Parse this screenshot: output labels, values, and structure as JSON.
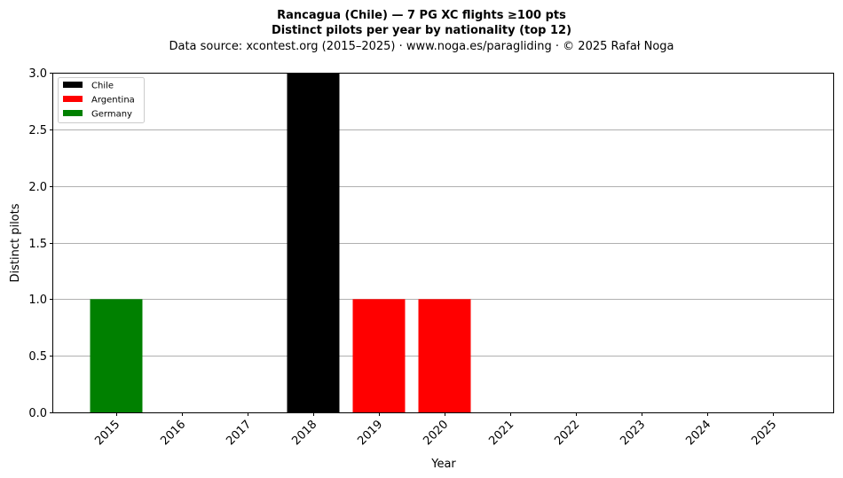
{
  "chart_data": {
    "type": "bar",
    "stacked": true,
    "title_line1": "Rancagua (Chile)  —  7 PG XC flights ≥100 pts",
    "title_line2": "Distinct pilots per year by nationality (top 12)",
    "subtitle": "Data source: xcontest.org (2015–2025)  ·  www.noga.es/paragliding  ·  © 2025 Rafał Noga",
    "xlabel": "Year",
    "ylabel": "Distinct pilots",
    "categories": [
      "2015",
      "2016",
      "2017",
      "2018",
      "2019",
      "2020",
      "2021",
      "2022",
      "2023",
      "2024",
      "2025"
    ],
    "ylim": [
      0,
      3.0
    ],
    "yticks": [
      "0.0",
      "0.5",
      "1.0",
      "1.5",
      "2.0",
      "2.5",
      "3.0"
    ],
    "ytick_values": [
      0,
      0.5,
      1.0,
      1.5,
      2.0,
      2.5,
      3.0
    ],
    "grid": "y-major",
    "legend_position": "top-left",
    "series": [
      {
        "name": "Chile",
        "color": "#000000",
        "values": [
          0,
          0,
          0,
          3,
          0,
          0,
          0,
          0,
          0,
          0,
          0
        ]
      },
      {
        "name": "Argentina",
        "color": "#ff0000",
        "values": [
          0,
          0,
          0,
          0,
          1,
          1,
          0,
          0,
          0,
          0,
          0
        ]
      },
      {
        "name": "Germany",
        "color": "#008000",
        "values": [
          1,
          0,
          0,
          0,
          0,
          0,
          0,
          0,
          0,
          0,
          0
        ]
      }
    ]
  }
}
